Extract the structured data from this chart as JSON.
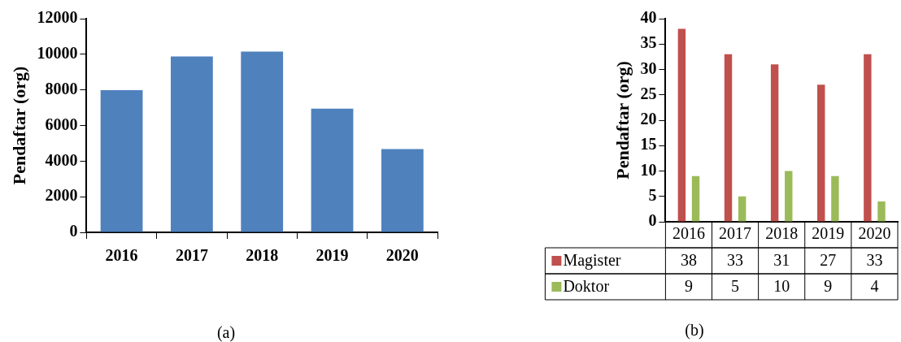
{
  "chart_data": [
    {
      "type": "bar",
      "categories": [
        "2016",
        "2017",
        "2018",
        "2019",
        "2020"
      ],
      "values": [
        7980,
        9880,
        10150,
        6950,
        4680
      ],
      "color": "#4f81bd",
      "ylabel": "Pendaftar (org)",
      "ylim": [
        0,
        12000
      ],
      "yticks": [
        0,
        2000,
        4000,
        6000,
        8000,
        10000,
        12000
      ],
      "grid": false,
      "annotations": [
        "(a)"
      ]
    },
    {
      "type": "bar",
      "categories": [
        "2016",
        "2017",
        "2018",
        "2019",
        "2020"
      ],
      "series": [
        {
          "name": "Magister",
          "color": "#c0504d",
          "values": [
            38,
            33,
            31,
            27,
            33
          ]
        },
        {
          "name": "Doktor",
          "color": "#9bbb59",
          "values": [
            9,
            5,
            10,
            9,
            4
          ]
        }
      ],
      "ylabel": "Pendaftar (org)",
      "ylim": [
        0,
        40
      ],
      "yticks": [
        0,
        5,
        10,
        15,
        20,
        25,
        30,
        35,
        40
      ],
      "grid": false,
      "legend": "bottom left",
      "data_labels": true,
      "annotations": [
        "(b)"
      ]
    }
  ]
}
